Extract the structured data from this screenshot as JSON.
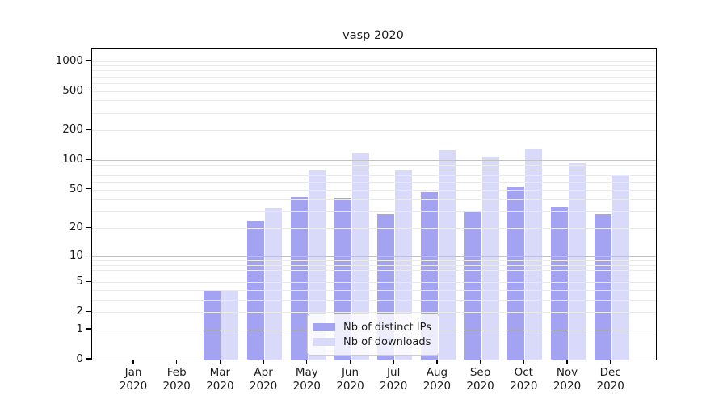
{
  "chart_data": {
    "type": "bar",
    "title": "vasp 2020",
    "categories": [
      "Jan",
      "Feb",
      "Mar",
      "Apr",
      "May",
      "Jun",
      "Jul",
      "Aug",
      "Sep",
      "Oct",
      "Nov",
      "Dec"
    ],
    "x_tick_second_line": "2020",
    "series": [
      {
        "name": "Nb of distinct IPs",
        "color": "#a3a3f2",
        "values": [
          0,
          0,
          4,
          24,
          42,
          41,
          28,
          47,
          30,
          54,
          33,
          28
        ]
      },
      {
        "name": "Nb of downloads",
        "color": "#d9d9fa",
        "values": [
          0,
          0,
          4,
          32,
          80,
          120,
          78,
          127,
          108,
          130,
          93,
          71
        ]
      }
    ],
    "y_axis": {
      "scale": "log1p",
      "tick_labels": [
        "0",
        "1",
        "2",
        "5",
        "10",
        "20",
        "50",
        "100",
        "200",
        "500",
        "1000"
      ],
      "tick_values": [
        0,
        1,
        2,
        5,
        10,
        20,
        50,
        100,
        200,
        500,
        1000
      ],
      "ylim": [
        0,
        1300
      ],
      "major_grid_values": [
        1,
        10,
        100
      ],
      "grid": true
    },
    "legend": {
      "position": "lower-center"
    }
  },
  "colors": {
    "bar_distinct_ips": "#a3a3f2",
    "bar_downloads": "#d9d9fa",
    "grid_minor": "#eaeaea",
    "grid_major": "#c2c2c2",
    "spine": "#000000",
    "text": "#1a1a1a"
  }
}
